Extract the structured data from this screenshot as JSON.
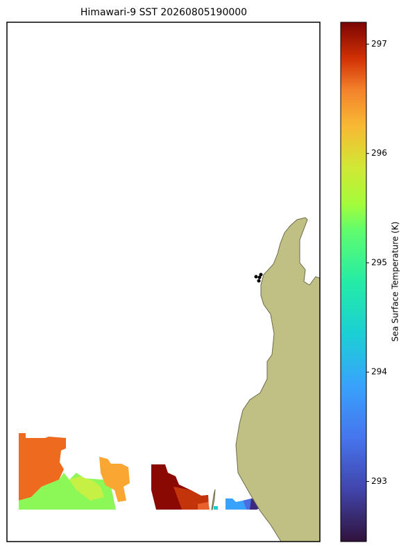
{
  "chart_data": {
    "type": "colormap-map",
    "title": "Himawari-9 SST 20260805190000",
    "colormap": "turbo",
    "colorbar_label": "Sea Surface Temperature (K)",
    "clim": [
      292.45,
      297.2
    ],
    "cticks": [
      293,
      294,
      295,
      296,
      297
    ]
  }
}
